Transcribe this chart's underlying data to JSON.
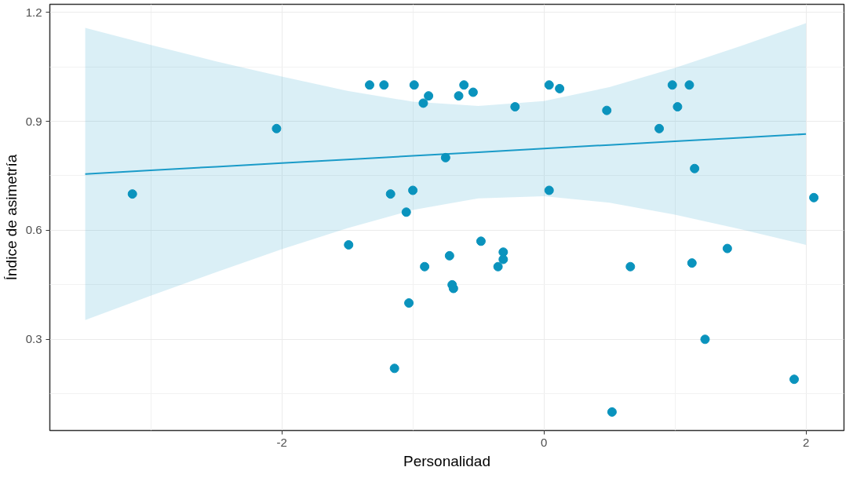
{
  "chart_data": {
    "type": "scatter",
    "xlabel": "Personalidad",
    "ylabel": "Índice de asimetría",
    "xlim": [
      -3.77,
      2.29
    ],
    "ylim": [
      0.049,
      1.222
    ],
    "xticks": [
      -2,
      0,
      2
    ],
    "yticks": [
      0.3,
      0.6,
      0.9,
      1.2
    ],
    "grid": true,
    "marker": "circle",
    "series": [
      {
        "type": "line",
        "marker": "none",
        "color": "#1a9bc8",
        "x": [
          -3.5,
          -3,
          -2.5,
          -2,
          -1.5,
          -1,
          -0.5,
          0,
          0.5,
          1,
          1.5,
          2
        ],
        "values": [
          0.755,
          0.765,
          0.775,
          0.785,
          0.795,
          0.805,
          0.815,
          0.825,
          0.835,
          0.845,
          0.855,
          0.865
        ],
        "lower": [
          0.353,
          0.42,
          0.485,
          0.548,
          0.606,
          0.656,
          0.688,
          0.694,
          0.676,
          0.643,
          0.603,
          0.56
        ],
        "upper": [
          1.157,
          1.11,
          1.065,
          1.023,
          0.984,
          0.954,
          0.942,
          0.956,
          0.994,
          1.047,
          1.107,
          1.17
        ]
      },
      {
        "color": "#0a93bd",
        "x": [
          -3.14,
          -2.04,
          -1.49,
          -1.33,
          -1.22,
          -0.99,
          -0.92,
          -0.88,
          -1.17,
          -1.0,
          -1.05,
          -0.91,
          -1.03,
          -1.14,
          -0.75,
          -0.65,
          -0.61,
          -0.54,
          -0.22,
          0.04,
          0.12,
          0.04,
          0.48,
          0.88,
          0.98,
          1.11,
          1.02,
          1.15,
          2.06,
          -0.72,
          -0.48,
          -0.69,
          -0.7,
          -0.31,
          -0.31,
          -0.35,
          0.66,
          1.13,
          1.4,
          1.23,
          1.91,
          0.52
        ],
        "values": [
          0.7,
          0.88,
          0.56,
          1.0,
          1.0,
          1.0,
          0.95,
          0.97,
          0.7,
          0.71,
          0.65,
          0.5,
          0.4,
          0.22,
          0.8,
          0.97,
          1.0,
          0.98,
          0.94,
          1.0,
          0.99,
          0.71,
          0.93,
          0.88,
          1.0,
          1.0,
          0.94,
          0.77,
          0.69,
          0.53,
          0.57,
          0.44,
          0.45,
          0.54,
          0.52,
          0.5,
          0.5,
          0.51,
          0.55,
          0.3,
          0.19,
          0.1
        ]
      }
    ]
  }
}
